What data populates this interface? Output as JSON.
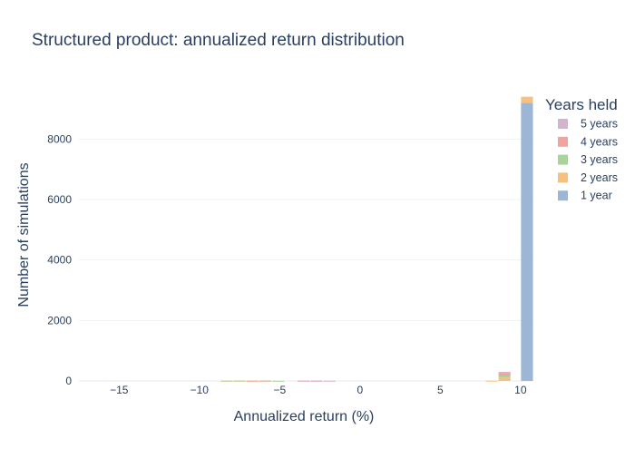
{
  "chart_data": {
    "type": "bar",
    "barmode": "stack",
    "title": "Structured product: annualized return distribution",
    "xlabel": "Annualized return (%)",
    "ylabel": "Number of simulations",
    "xlim": [
      -17.5,
      10.8
    ],
    "ylim": [
      0,
      9600
    ],
    "xticks": [
      -15,
      -10,
      -5,
      0,
      5,
      10
    ],
    "yticks": [
      0,
      2000,
      4000,
      6000,
      8000
    ],
    "bin_width": 0.8,
    "grid": true,
    "legend": {
      "title": "Years held",
      "position": "top-right"
    },
    "series": [
      {
        "name": "5 years",
        "color": "#d4b4cc",
        "x": [
          -3.5,
          -2.7,
          -1.9,
          9.0
        ],
        "values": [
          6,
          8,
          6,
          60
        ]
      },
      {
        "name": "4 years",
        "color": "#f2a39e",
        "x": [
          -6.7,
          -5.9,
          -3.5,
          -2.7,
          9.0
        ],
        "values": [
          5,
          8,
          6,
          5,
          60
        ]
      },
      {
        "name": "3 years",
        "color": "#a8d49a",
        "x": [
          -8.3,
          -7.5,
          -5.9,
          -5.1,
          9.0
        ],
        "values": [
          6,
          6,
          5,
          5,
          70
        ]
      },
      {
        "name": "2 years",
        "color": "#f8c07e",
        "x": [
          -8.3,
          -7.5,
          -6.7,
          8.2,
          9.0,
          10.4
        ],
        "values": [
          6,
          6,
          5,
          8,
          110,
          200
        ]
      },
      {
        "name": "1 year",
        "color": "#9db6d5",
        "x": [
          10.4
        ],
        "values": [
          9200
        ]
      }
    ]
  }
}
